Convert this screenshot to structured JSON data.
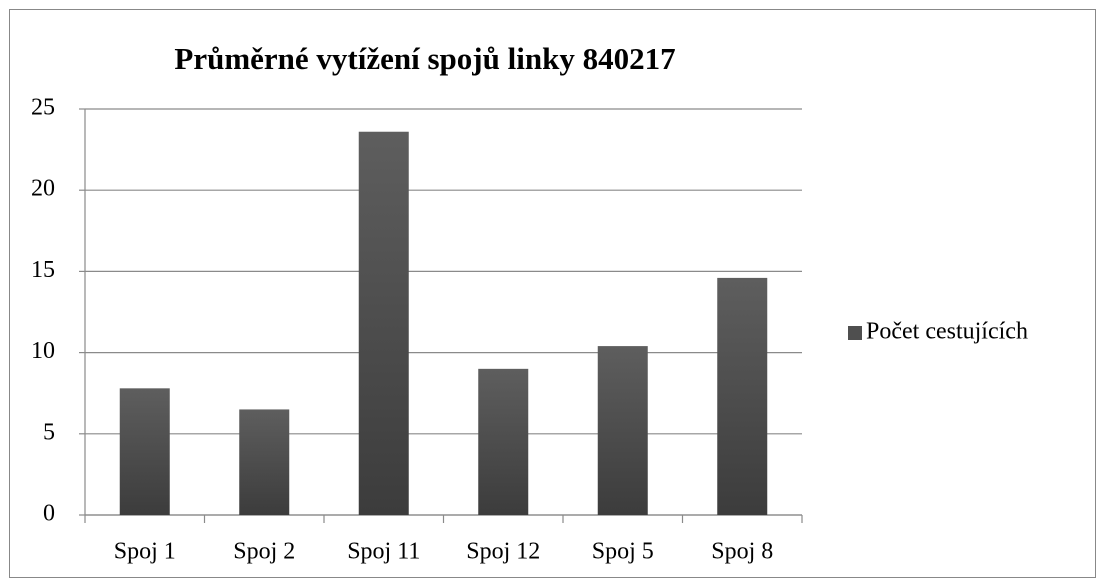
{
  "chart_data": {
    "type": "bar",
    "title": "Průměrné vytížení spojů linky 840217",
    "categories": [
      "Spoj 1",
      "Spoj 2",
      "Spoj 11",
      "Spoj 12",
      "Spoj 5",
      "Spoj 8"
    ],
    "series": [
      {
        "name": "Počet cestujících",
        "color": "#4f4f4f",
        "values": [
          7.8,
          6.5,
          23.6,
          9.0,
          10.4,
          14.6
        ]
      }
    ],
    "ylim": [
      0,
      25
    ],
    "yticks": [
      0,
      5,
      10,
      15,
      20,
      25
    ],
    "grid": true,
    "legend": "right"
  }
}
